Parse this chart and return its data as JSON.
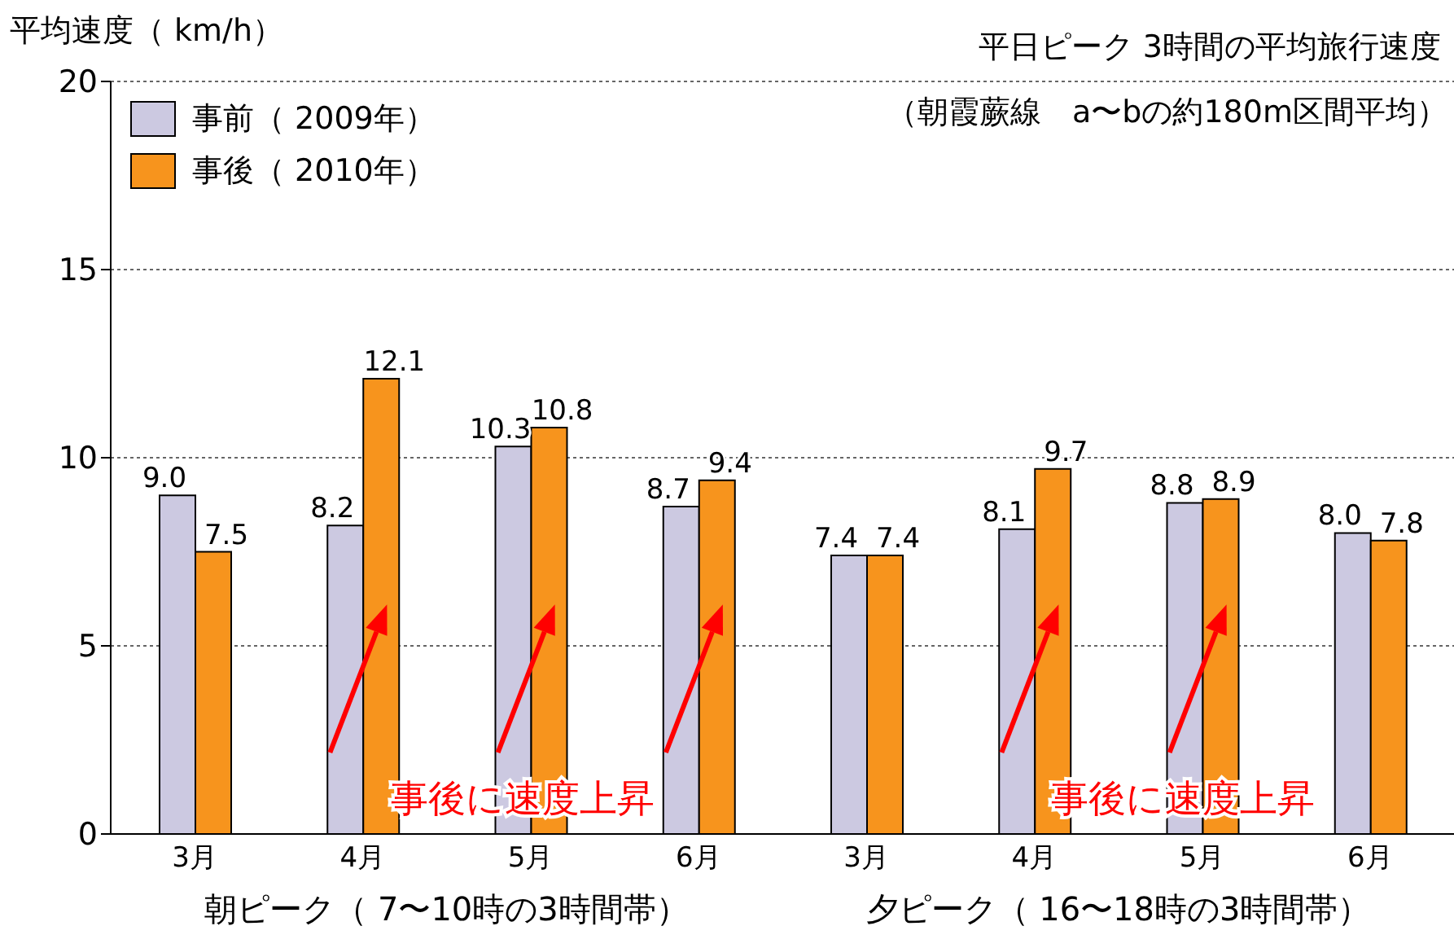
{
  "chart_data": {
    "type": "bar",
    "title": "平日ピーク 3時間の平均旅行速度",
    "subtitle": "（朝霞蕨線　a〜bの約180m区間平均）",
    "ylabel": "平均速度（ km/h）",
    "categories": [
      "3月",
      "4月",
      "5月",
      "6月",
      "3月",
      "4月",
      "5月",
      "6月"
    ],
    "series": [
      {
        "name": "事前（ 2009年）",
        "color": "#ccc9e1",
        "values": [
          9.0,
          8.2,
          10.3,
          8.7,
          7.4,
          8.1,
          8.8,
          8.0
        ],
        "value_labels": [
          "9.0",
          "8.2",
          "10.3",
          "8.7",
          "7.4",
          "8.1",
          "8.8",
          "8.0"
        ]
      },
      {
        "name": "事後（ 2010年）",
        "color": "#f7941d",
        "values": [
          7.5,
          12.1,
          10.8,
          9.4,
          7.4,
          9.7,
          8.9,
          7.8
        ],
        "value_labels": [
          "7.5",
          "12.1",
          "10.8",
          "9.4",
          "7.4",
          "9.7",
          "8.9",
          "7.8"
        ]
      }
    ],
    "ylim": [
      0,
      20
    ],
    "yticks": [
      0,
      5,
      10,
      15,
      20
    ],
    "grid": "y",
    "legend": "top left",
    "annotations": [
      "朝ピーク（ 7〜10時の3時間帯）",
      "夕ピーク（ 16〜18時の3時間帯）",
      "事後に速度上昇",
      "事後に速度上昇"
    ]
  }
}
